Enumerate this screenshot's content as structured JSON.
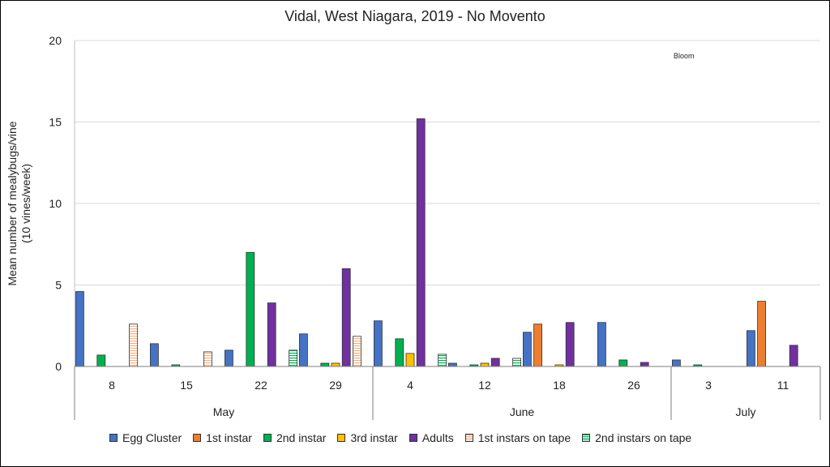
{
  "chart_data": {
    "type": "bar",
    "title": "Vidal, West Niagara, 2019 - No Movento",
    "ylabel_lines": [
      "Mean number of mealybugs/vine",
      "(10 vines/week)"
    ],
    "xlabel": "",
    "ylim": [
      0,
      20
    ],
    "yticks": [
      0,
      5,
      10,
      15,
      20
    ],
    "grid": true,
    "legend_position": "bottom",
    "categories": [
      "8",
      "15",
      "22",
      "29",
      "4",
      "12",
      "18",
      "26",
      "3",
      "11"
    ],
    "months": [
      {
        "label": "May",
        "count": 4
      },
      {
        "label": "June",
        "count": 4
      },
      {
        "label": "July",
        "count": 2
      }
    ],
    "annotation": "Bloom",
    "series": [
      {
        "name": "Egg Cluster",
        "color": "#4472c4",
        "pattern": "solid",
        "values": [
          4.6,
          1.4,
          1.0,
          2.0,
          2.8,
          0.2,
          2.1,
          2.7,
          0.4,
          2.2
        ]
      },
      {
        "name": "1st instar",
        "color": "#ed7d31",
        "pattern": "solid",
        "values": [
          0,
          0,
          0,
          0,
          0,
          0,
          2.6,
          0,
          0,
          4.0
        ]
      },
      {
        "name": "2nd instar",
        "color": "#00b050",
        "pattern": "solid",
        "values": [
          0.7,
          0.1,
          7.0,
          0.2,
          1.7,
          0.1,
          0,
          0.4,
          0.1,
          0
        ]
      },
      {
        "name": "3rd instar",
        "color": "#ffc000",
        "pattern": "solid",
        "values": [
          0,
          0,
          0,
          0.2,
          0.8,
          0.2,
          0.1,
          0,
          0,
          0
        ]
      },
      {
        "name": "Adults",
        "color": "#7030a0",
        "pattern": "solid",
        "values": [
          0,
          0,
          3.9,
          6.0,
          15.2,
          0.5,
          2.7,
          0.25,
          0,
          1.3
        ]
      },
      {
        "name": "1st instars on tape",
        "color": "#f4b183",
        "pattern": "hatch",
        "values": [
          2.6,
          0.9,
          0,
          1.85,
          0,
          0,
          0,
          0,
          0,
          0
        ]
      },
      {
        "name": "2nd instars on tape",
        "color": "#00b050",
        "pattern": "hatch",
        "values": [
          0,
          0,
          1.0,
          0,
          0.75,
          0.5,
          0,
          0,
          0,
          0
        ]
      }
    ]
  }
}
